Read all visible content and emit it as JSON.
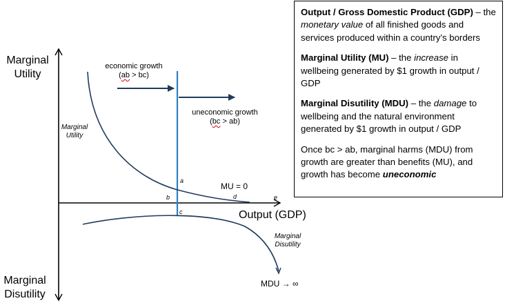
{
  "diagram": {
    "y_axis_top_label": [
      "Marginal",
      "Utility"
    ],
    "y_axis_bottom_label": [
      "Marginal",
      "Disutility"
    ],
    "x_axis_label": "Output (GDP)",
    "curve_mu_label": [
      "Marginal",
      "Utility"
    ],
    "curve_mdu_label": [
      "Marginal",
      "Disutility"
    ],
    "economic_growth": {
      "title": "economic growth",
      "cond_open": "(",
      "cond_word": "ab",
      "cond_rest": " > bc)"
    },
    "uneconomic_growth": {
      "title": "uneconomic growth",
      "cond_open": "(",
      "cond_word": "bc",
      "cond_rest": " > ab)"
    },
    "points": {
      "a": "a",
      "b": "b",
      "c": "c",
      "d": "d",
      "e": "e"
    },
    "mu_zero": "MU = 0",
    "mdu_infinity": "MDU → ∞",
    "colors": {
      "growth_line": "#2e7fc1",
      "axis": "#000000",
      "curve": "#1f3b5c",
      "arrow": "#1f3b5c"
    }
  },
  "definitions": {
    "gdp": {
      "term": "Output / Gross Domestic Product (GDP)",
      "dash": " – the ",
      "em": "monetary value",
      "rest": " of all finished goods and services produced within a country’s borders"
    },
    "mu": {
      "term": "Marginal Utility (MU)",
      "dash": " – the ",
      "em": "increase",
      "rest": " in wellbeing generated by $1 growth in output / GDP"
    },
    "mdu": {
      "term": "Marginal Disutility (MDU)",
      "dash": " – the ",
      "em": "damage",
      "rest": " to wellbeing and the natural environment generated by $1 growth in output / GDP"
    },
    "conclusion": {
      "text": "Once bc > ab, marginal harms (MDU) from growth are greater than benefits (MU), and growth has become ",
      "emphasis": "uneconomic"
    }
  }
}
